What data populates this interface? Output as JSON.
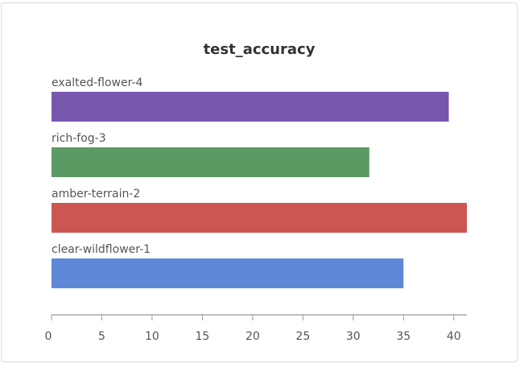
{
  "chart_data": {
    "type": "bar",
    "orientation": "horizontal",
    "title": "test_accuracy",
    "xlabel": "",
    "ylabel": "",
    "xlim": [
      0,
      41.3
    ],
    "grid": false,
    "legend": "none",
    "categories": [
      "exalted-flower-4",
      "rich-fog-3",
      "amber-terrain-2",
      "clear-wildflower-1"
    ],
    "values": [
      39.5,
      31.6,
      41.3,
      35.0
    ],
    "colors": [
      "#7856ad",
      "#5c9a64",
      "#cb5652",
      "#5f88d9"
    ],
    "ticks": [
      "0",
      "5",
      "10",
      "15",
      "20",
      "25",
      "30",
      "35",
      "40"
    ],
    "tick_values": [
      0,
      5,
      10,
      15,
      20,
      25,
      30,
      35,
      40
    ]
  }
}
